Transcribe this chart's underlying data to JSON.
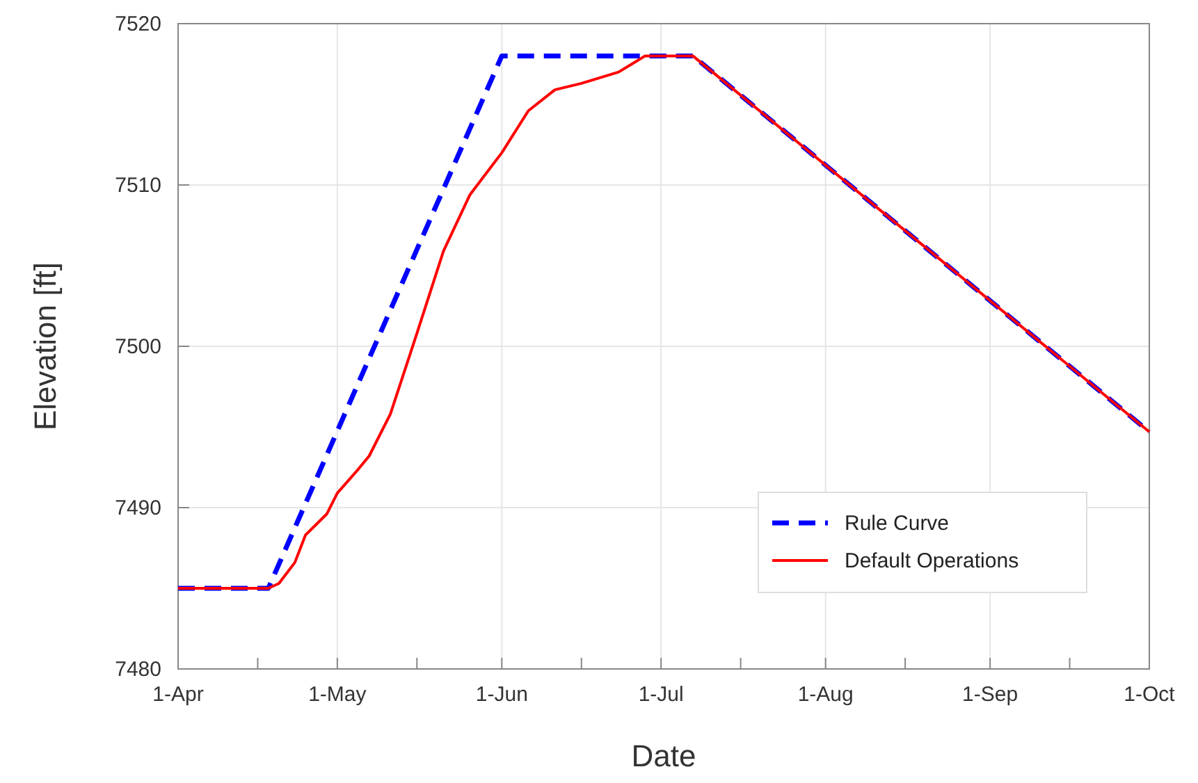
{
  "chart_data": {
    "type": "line",
    "xlabel": "Date",
    "ylabel": "Elevation [ft]",
    "xlim": [
      "--04-01",
      "--10-01"
    ],
    "xticks": [
      {
        "value": "--04-01",
        "label": "1-Apr"
      },
      {
        "value": "--04-16",
        "label": null
      },
      {
        "value": "--05-01",
        "label": "1-May"
      },
      {
        "value": "--05-16",
        "label": null
      },
      {
        "value": "--06-01",
        "label": "1-Jun"
      },
      {
        "value": "--06-16",
        "label": null
      },
      {
        "value": "--07-01",
        "label": "1-Jul"
      },
      {
        "value": "--07-16",
        "label": null
      },
      {
        "value": "--08-01",
        "label": "1-Aug"
      },
      {
        "value": "--08-16",
        "label": null
      },
      {
        "value": "--09-01",
        "label": "1-Sep"
      },
      {
        "value": "--09-16",
        "label": null
      },
      {
        "value": "--10-01",
        "label": "1-Oct"
      }
    ],
    "ylim": [
      7480,
      7520
    ],
    "yticks": [
      7480,
      7490,
      7500,
      7510,
      7520
    ],
    "grid": true,
    "legend": "bottom right",
    "series": [
      {
        "name": "Rule Curve",
        "color": "#0000ff",
        "line_style": "dashed",
        "x": [
          "--04-01",
          "--04-18",
          "--06-01",
          "--07-07",
          "--10-01"
        ],
        "values": [
          7485,
          7485,
          7518,
          7518,
          7494.7
        ]
      },
      {
        "name": "Default Operations",
        "color": "#ff0000",
        "line_style": "solid",
        "x": [
          "--04-01",
          "--04-18",
          "--04-20",
          "--04-23",
          "--04-25",
          "--04-29",
          "--05-01",
          "--05-05",
          "--05-07",
          "--05-11",
          "--05-16",
          "--05-21",
          "--05-26",
          "--06-01",
          "--06-06",
          "--06-11",
          "--06-16",
          "--06-23",
          "--06-26",
          "--06-28",
          "--07-07",
          "--10-01"
        ],
        "values": [
          7485,
          7485,
          7485.3,
          7486.6,
          7488.3,
          7489.6,
          7490.9,
          7492.4,
          7493.2,
          7495.8,
          7500.8,
          7505.9,
          7509.4,
          7512,
          7514.6,
          7515.9,
          7516.3,
          7517,
          7517.6,
          7518,
          7518,
          7494.7
        ]
      }
    ]
  }
}
